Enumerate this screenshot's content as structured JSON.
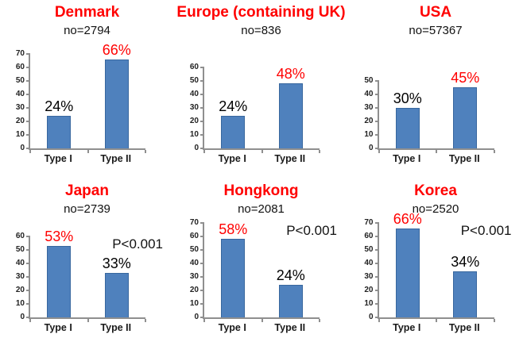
{
  "page": {
    "background": "#ffffff"
  },
  "colors": {
    "bar_fill": "#4f81bd",
    "bar_border": "#38679e",
    "title": "#ff0000",
    "emphasis_label": "#ff0000",
    "label": "#000000",
    "axis": "#8f8f8f"
  },
  "chart_data": [
    {
      "type": "bar",
      "title": "Denmark",
      "subtitle": "no=2794",
      "categories": [
        "Type I",
        "Type II"
      ],
      "values": [
        24,
        66
      ],
      "value_labels": [
        "24%",
        "66%"
      ],
      "emphasized_index": 1,
      "ylim": [
        0,
        70
      ],
      "yticks": [
        0,
        10,
        20,
        30,
        40,
        50,
        60,
        70
      ],
      "annotation": ""
    },
    {
      "type": "bar",
      "title": "Europe (containing UK)",
      "subtitle": "no=836",
      "categories": [
        "Type I",
        "Type II"
      ],
      "values": [
        24,
        48
      ],
      "value_labels": [
        "24%",
        "48%"
      ],
      "emphasized_index": 1,
      "ylim": [
        0,
        60
      ],
      "yticks": [
        0,
        10,
        20,
        30,
        40,
        50,
        60
      ],
      "annotation": ""
    },
    {
      "type": "bar",
      "title": "USA",
      "subtitle": "no=57367",
      "categories": [
        "Type I",
        "Type II"
      ],
      "values": [
        30,
        45
      ],
      "value_labels": [
        "30%",
        "45%"
      ],
      "emphasized_index": 1,
      "ylim": [
        0,
        50
      ],
      "yticks": [
        0,
        10,
        20,
        30,
        40,
        50
      ],
      "annotation": ""
    },
    {
      "type": "bar",
      "title": "Japan",
      "subtitle": "no=2739",
      "categories": [
        "Type I",
        "Type II"
      ],
      "values": [
        53,
        33
      ],
      "value_labels": [
        "53%",
        "33%"
      ],
      "emphasized_index": 0,
      "ylim": [
        0,
        60
      ],
      "yticks": [
        0,
        10,
        20,
        30,
        40,
        50,
        60
      ],
      "annotation": "P<0.001"
    },
    {
      "type": "bar",
      "title": "Hongkong",
      "subtitle": "no=2081",
      "categories": [
        "Type I",
        "Type II"
      ],
      "values": [
        58,
        24
      ],
      "value_labels": [
        "58%",
        "24%"
      ],
      "emphasized_index": 0,
      "ylim": [
        0,
        70
      ],
      "yticks": [
        0,
        10,
        20,
        30,
        40,
        50,
        60,
        70
      ],
      "annotation": "P<0.001"
    },
    {
      "type": "bar",
      "title": "Korea",
      "subtitle": "no=2520",
      "categories": [
        "Type I",
        "Type II"
      ],
      "values": [
        66,
        34
      ],
      "value_labels": [
        "66%",
        "34%"
      ],
      "emphasized_index": 0,
      "ylim": [
        0,
        70
      ],
      "yticks": [
        0,
        10,
        20,
        30,
        40,
        50,
        60,
        70
      ],
      "annotation": "P<0.001"
    }
  ]
}
